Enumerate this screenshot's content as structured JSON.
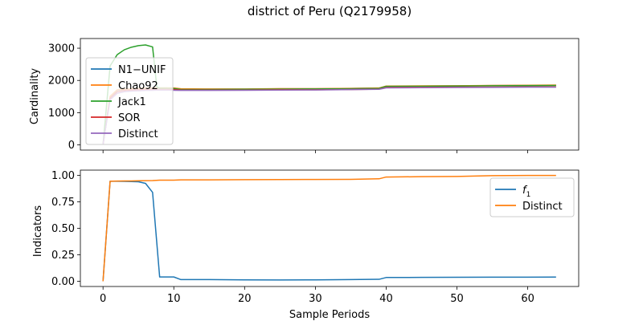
{
  "title": "district of Peru (Q2179958)",
  "colors": {
    "blue": "#1f77b4",
    "orange": "#ff7f0e",
    "green": "#2ca02c",
    "red": "#d62728",
    "purple": "#9467bd"
  },
  "chart_data": [
    {
      "type": "line",
      "ylabel": "Cardinality",
      "xlabel": "",
      "xlim": [
        -3.2,
        67.2
      ],
      "ylim": [
        -160,
        3300
      ],
      "xticks": [
        0,
        10,
        20,
        30,
        40,
        50,
        60
      ],
      "yticks": [
        0,
        1000,
        2000,
        3000
      ],
      "ytick_labels": [
        "0",
        "1000",
        "2000",
        "3000"
      ],
      "legend_position": "upper-left",
      "series": [
        {
          "name": "N1−UNIF",
          "color": "#1f77b4",
          "x": [
            0,
            1,
            2,
            3,
            4,
            5,
            6,
            7,
            8,
            9,
            10,
            11,
            15,
            20,
            25,
            30,
            35,
            39,
            40,
            45,
            50,
            55,
            60,
            64
          ],
          "y": [
            10,
            1500,
            1700,
            1720,
            1730,
            1740,
            1750,
            1755,
            1760,
            1765,
            1760,
            1730,
            1730,
            1730,
            1740,
            1740,
            1750,
            1760,
            1820,
            1825,
            1830,
            1840,
            1845,
            1850
          ]
        },
        {
          "name": "Chao92",
          "color": "#ff7f0e",
          "x": [
            0,
            1,
            2,
            3,
            4,
            5,
            6,
            7,
            8,
            9,
            10,
            11,
            15,
            20,
            25,
            30,
            35,
            39,
            40,
            45,
            50,
            55,
            60,
            64
          ],
          "y": [
            10,
            1510,
            1710,
            1730,
            1740,
            1750,
            1760,
            1765,
            1770,
            1770,
            1765,
            1740,
            1735,
            1735,
            1745,
            1745,
            1755,
            1765,
            1825,
            1830,
            1835,
            1845,
            1850,
            1855
          ]
        },
        {
          "name": "Jack1",
          "color": "#2ca02c",
          "x": [
            0,
            1,
            2,
            3,
            4,
            5,
            6,
            7,
            7.6,
            8,
            9,
            10,
            11,
            15,
            20,
            25,
            30,
            35,
            39,
            40,
            45,
            50,
            55,
            60,
            64
          ],
          "y": [
            10,
            2450,
            2800,
            2950,
            3030,
            3080,
            3100,
            3040,
            1800,
            1760,
            1755,
            1750,
            1720,
            1720,
            1725,
            1730,
            1735,
            1745,
            1755,
            1815,
            1820,
            1825,
            1835,
            1840,
            1845
          ]
        },
        {
          "name": "SOR",
          "color": "#d62728",
          "x": [
            0,
            1,
            2,
            3,
            4,
            5,
            6,
            7,
            8,
            9,
            10,
            11,
            15,
            20,
            25,
            30,
            35,
            39,
            40,
            45,
            50,
            55,
            60,
            64
          ],
          "y": [
            10,
            1450,
            1650,
            1690,
            1700,
            1710,
            1715,
            1720,
            1725,
            1725,
            1720,
            1700,
            1700,
            1700,
            1710,
            1710,
            1720,
            1730,
            1780,
            1785,
            1790,
            1795,
            1800,
            1800
          ]
        },
        {
          "name": "Distinct",
          "color": "#9467bd",
          "x": [
            0,
            1,
            2,
            3,
            4,
            5,
            6,
            7,
            8,
            9,
            10,
            11,
            15,
            20,
            25,
            30,
            35,
            39,
            40,
            45,
            50,
            55,
            60,
            64
          ],
          "y": [
            10,
            1400,
            1600,
            1650,
            1670,
            1680,
            1690,
            1695,
            1700,
            1700,
            1695,
            1690,
            1690,
            1695,
            1700,
            1705,
            1715,
            1725,
            1770,
            1775,
            1780,
            1785,
            1790,
            1790
          ]
        }
      ]
    },
    {
      "type": "line",
      "ylabel": "Indicators",
      "xlabel": "Sample Periods",
      "xlim": [
        -3.2,
        67.2
      ],
      "ylim": [
        -0.05,
        1.05
      ],
      "xticks": [
        0,
        10,
        20,
        30,
        40,
        50,
        60
      ],
      "yticks": [
        0.0,
        0.25,
        0.5,
        0.75,
        1.0
      ],
      "ytick_labels": [
        "0.00",
        "0.25",
        "0.50",
        "0.75",
        "1.00"
      ],
      "legend_position": "upper-right",
      "series": [
        {
          "name": "f1",
          "legend_main": "f",
          "legend_sub": "1",
          "color": "#1f77b4",
          "x": [
            0,
            1,
            2,
            3,
            4,
            5,
            6,
            7,
            8,
            9,
            10,
            11,
            15,
            20,
            25,
            30,
            35,
            39,
            40,
            45,
            50,
            55,
            60,
            64
          ],
          "y": [
            0.0,
            0.945,
            0.945,
            0.944,
            0.942,
            0.94,
            0.925,
            0.84,
            0.04,
            0.04,
            0.04,
            0.015,
            0.015,
            0.013,
            0.012,
            0.013,
            0.015,
            0.018,
            0.035,
            0.036,
            0.037,
            0.038,
            0.038,
            0.039
          ]
        },
        {
          "name": "Distinct",
          "legend_main": "Distinct",
          "legend_sub": "",
          "color": "#ff7f0e",
          "x": [
            0,
            1,
            2,
            3,
            4,
            5,
            6,
            7,
            8,
            9,
            10,
            11,
            15,
            20,
            25,
            30,
            35,
            39,
            40,
            45,
            50,
            55,
            60,
            64
          ],
          "y": [
            0.0,
            0.945,
            0.947,
            0.948,
            0.948,
            0.949,
            0.95,
            0.951,
            0.955,
            0.955,
            0.955,
            0.958,
            0.958,
            0.96,
            0.961,
            0.962,
            0.963,
            0.968,
            0.985,
            0.988,
            0.99,
            0.998,
            1.0,
            1.0
          ]
        }
      ]
    }
  ]
}
